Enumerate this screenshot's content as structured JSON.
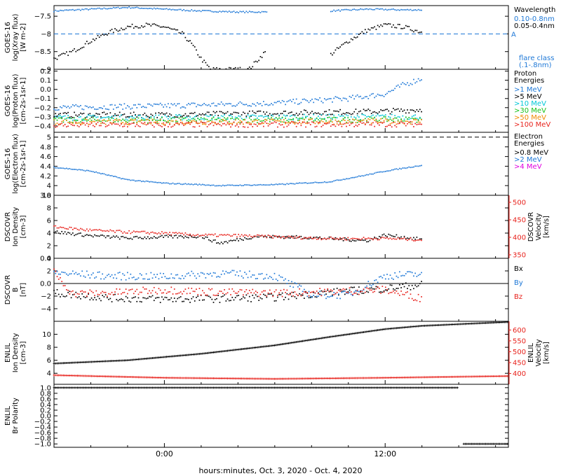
{
  "footer_label": "hours:minutes, Oct.  3, 2020 - Oct.  4, 2020",
  "x_axis": {
    "range_hours": [
      -6,
      18.7
    ],
    "data_end_hour": 14,
    "tick_labels": [
      {
        "hour": 0,
        "label": "0:00"
      },
      {
        "hour": 12,
        "label": "12:00"
      }
    ]
  },
  "colors": {
    "blue": "#1e78d7",
    "black": "#000000",
    "red": "#e8231d",
    "cyan": "#00c8d8",
    "green": "#18c21a",
    "yellow": "#d6c700",
    "orange": "#f08a00",
    "magenta": "#e000e0"
  },
  "chart_data": [
    {
      "type": "scatter",
      "ylabel_lines": [
        "GOES-16",
        "log(Xray flux)",
        "[W m-2]"
      ],
      "ylim": [
        -9.0,
        -7.2
      ],
      "yticks": [
        -7.5,
        -8.0,
        -8.5,
        -9.0
      ],
      "ref_lines": [
        {
          "y": -8.0,
          "style": "dashed",
          "color": "#1e78d7",
          "label": "A"
        }
      ],
      "legend_title": "Wavelength",
      "legend": [
        {
          "label": "0.10-0.8nm",
          "color": "#1e78d7"
        },
        {
          "label": "0.05-0.4nm",
          "color": "#000000"
        }
      ],
      "annotation": [
        "flare class",
        "(.1-.8nm)"
      ],
      "series": [
        {
          "name": "0.10-0.8nm",
          "color": "#1e78d7",
          "points": [
            [
              -6,
              -7.35
            ],
            [
              -4,
              -7.3
            ],
            [
              -2,
              -7.25
            ],
            [
              0,
              -7.3
            ],
            [
              2,
              -7.35
            ],
            [
              4,
              -7.38
            ],
            [
              5.6,
              -7.38
            ],
            [
              6.2,
              null
            ],
            [
              8.5,
              null
            ],
            [
              9,
              -7.35
            ],
            [
              11,
              -7.3
            ],
            [
              13,
              -7.32
            ],
            [
              14,
              -7.32
            ]
          ]
        },
        {
          "name": "0.05-0.4nm",
          "color": "#000000",
          "points": [
            [
              -6,
              -8.7
            ],
            [
              -5,
              -8.5
            ],
            [
              -4,
              -8.2
            ],
            [
              -3,
              -7.95
            ],
            [
              -2,
              -7.8
            ],
            [
              -1,
              -7.75
            ],
            [
              0,
              -7.8
            ],
            [
              1,
              -8.0
            ],
            [
              1.5,
              -8.3
            ],
            [
              2,
              -8.7
            ],
            [
              2.5,
              -9.0
            ],
            [
              4.6,
              -9.0
            ],
            [
              5.5,
              -8.5
            ],
            [
              6.2,
              null
            ],
            [
              8.5,
              null
            ],
            [
              9,
              -8.6
            ],
            [
              10,
              -8.2
            ],
            [
              11,
              -7.9
            ],
            [
              12,
              -7.75
            ],
            [
              13,
              -7.8
            ],
            [
              14,
              -7.95
            ]
          ]
        }
      ]
    },
    {
      "type": "scatter",
      "ylabel_lines": [
        "GOES-16",
        "log(Proton flux)",
        "[cm-2s-1sr-1]"
      ],
      "ylim": [
        -0.47,
        0.22
      ],
      "yticks": [
        0.2,
        0.1,
        0.0,
        -0.1,
        -0.2,
        -0.3,
        -0.4
      ],
      "legend_title": "Proton Energies",
      "legend": [
        {
          "label": ">1 MeV",
          "color": "#1e78d7"
        },
        {
          "label": ">5 MeV",
          "color": "#000000"
        },
        {
          "label": ">10 MeV",
          "color": "#00c8d8"
        },
        {
          "label": ">30 MeV",
          "color": "#18c21a"
        },
        {
          "label": ">50 MeV",
          "color": "#f08a00"
        },
        {
          "label": ">100 MeV",
          "color": "#e8231d"
        }
      ],
      "series": [
        {
          "name": ">1 MeV",
          "color": "#1e78d7",
          "points": [
            [
              -6,
              -0.2
            ],
            [
              0,
              -0.18
            ],
            [
              6,
              -0.15
            ],
            [
              10,
              -0.1
            ],
            [
              12,
              -0.05
            ],
            [
              13,
              0.05
            ],
            [
              14,
              0.12
            ]
          ]
        },
        {
          "name": ">5 MeV",
          "color": "#000000",
          "points": [
            [
              -6,
              -0.28
            ],
            [
              0,
              -0.28
            ],
            [
              6,
              -0.26
            ],
            [
              12,
              -0.24
            ],
            [
              14,
              -0.22
            ]
          ]
        },
        {
          "name": ">10 MeV",
          "color": "#00c8d8",
          "points": [
            [
              -6,
              -0.31
            ],
            [
              14,
              -0.3
            ]
          ]
        },
        {
          "name": ">30 MeV",
          "color": "#18c21a",
          "points": [
            [
              -6,
              -0.34
            ],
            [
              14,
              -0.33
            ]
          ]
        },
        {
          "name": ">50 MeV",
          "color": "#f08a00",
          "points": [
            [
              -6,
              -0.36
            ],
            [
              14,
              -0.35
            ]
          ]
        },
        {
          "name": ">100 MeV",
          "color": "#e8231d",
          "points": [
            [
              -6,
              -0.39
            ],
            [
              14,
              -0.38
            ]
          ]
        }
      ]
    },
    {
      "type": "scatter",
      "ylabel_lines": [
        "GOES-16",
        "log(Electron flux)",
        "[cm-2s-1sr-1]"
      ],
      "ylim": [
        3.8,
        5.1
      ],
      "yticks": [
        5.0,
        4.8,
        4.6,
        4.4,
        4.2,
        4.0,
        3.8
      ],
      "ref_lines": [
        {
          "y": 5.0,
          "style": "dashed",
          "color": "#000000"
        }
      ],
      "legend_title": "Electron Energies",
      "legend": [
        {
          "label": ">0.8 MeV",
          "color": "#000000"
        },
        {
          "label": ">2 MeV",
          "color": "#1e78d7"
        },
        {
          "label": ">4 MeV",
          "color": "#e000e0"
        }
      ],
      "series": [
        {
          "name": ">2 MeV",
          "color": "#1e78d7",
          "points": [
            [
              -6,
              4.38
            ],
            [
              -4,
              4.3
            ],
            [
              -2,
              4.12
            ],
            [
              0,
              4.05
            ],
            [
              2,
              4.02
            ],
            [
              3,
              4.0
            ],
            [
              6,
              4.02
            ],
            [
              9,
              4.08
            ],
            [
              11,
              4.22
            ],
            [
              12,
              4.3
            ],
            [
              14,
              4.42
            ]
          ]
        }
      ]
    },
    {
      "type": "scatter",
      "ylabel_lines": [
        "DSCOVR",
        "Ion Density",
        "[cm-3]"
      ],
      "ylim": [
        0,
        10
      ],
      "yticks": [
        10,
        8,
        6,
        4,
        2,
        0
      ],
      "right_axis": {
        "lines": [
          "DSCOVR",
          "Velocity",
          "[km/s]"
        ],
        "ticks": [
          500,
          450,
          400,
          350
        ],
        "color": "#e8231d",
        "range": [
          340,
          520
        ]
      },
      "series": [
        {
          "name": "Ion Density",
          "color": "#000000",
          "points": [
            [
              -6,
              4.2
            ],
            [
              -4,
              3.6
            ],
            [
              -2,
              3.2
            ],
            [
              0,
              3.4
            ],
            [
              2,
              3.5
            ],
            [
              3,
              2.4
            ],
            [
              5,
              3.5
            ],
            [
              8,
              3.3
            ],
            [
              11,
              2.8
            ],
            [
              12,
              3.7
            ],
            [
              14,
              3.0
            ]
          ]
        },
        {
          "name": "Velocity",
          "color": "#e8231d",
          "axis": "right",
          "points": [
            [
              -6,
              430
            ],
            [
              -4,
              420
            ],
            [
              -2,
              415
            ],
            [
              0,
              412
            ],
            [
              2,
              406
            ],
            [
              4,
              405
            ],
            [
              8,
              398
            ],
            [
              10,
              396
            ],
            [
              12,
              397
            ],
            [
              14,
              393
            ]
          ]
        }
      ]
    },
    {
      "type": "scatter",
      "ylabel_lines": [
        "DSCOVR",
        "B",
        "[nT]"
      ],
      "ylim": [
        -6,
        4
      ],
      "yticks": [
        4,
        2,
        0,
        -2,
        -4
      ],
      "ref_lines": [
        {
          "y": 0,
          "style": "solid",
          "color": "#000000"
        }
      ],
      "legend": [
        {
          "label": "Bx",
          "color": "#000000"
        },
        {
          "label": "By",
          "color": "#1e78d7"
        },
        {
          "label": "Bz",
          "color": "#e8231d"
        }
      ],
      "series": [
        {
          "name": "Bx",
          "color": "#000000",
          "points": [
            [
              -6,
              -1.5
            ],
            [
              -3,
              -2.3
            ],
            [
              0,
              -2.5
            ],
            [
              3,
              -2.4
            ],
            [
              6,
              -2.2
            ],
            [
              9,
              -1.4
            ],
            [
              12,
              -0.8
            ],
            [
              14,
              -0.2
            ]
          ]
        },
        {
          "name": "By",
          "color": "#1e78d7",
          "points": [
            [
              -6,
              1.7
            ],
            [
              -3,
              1.2
            ],
            [
              0,
              1.1
            ],
            [
              3,
              1.6
            ],
            [
              6,
              1.2
            ],
            [
              8,
              -1.8
            ],
            [
              10,
              -1.8
            ],
            [
              12,
              1.2
            ],
            [
              14,
              1.5
            ]
          ]
        },
        {
          "name": "Bz",
          "color": "#e8231d",
          "points": [
            [
              -6,
              1.8
            ],
            [
              -5,
              -1.6
            ],
            [
              -3,
              -1.5
            ],
            [
              0,
              -1.0
            ],
            [
              3,
              -1.4
            ],
            [
              6,
              -1.5
            ],
            [
              9,
              -1.3
            ],
            [
              12,
              -1.0
            ],
            [
              14,
              -2.4
            ]
          ]
        }
      ]
    },
    {
      "type": "scatter",
      "ylabel_lines": [
        "ENLIL",
        "Ion Density",
        "[cm-3]"
      ],
      "ylim": [
        2.3,
        12
      ],
      "yticks": [
        10,
        8,
        6,
        4
      ],
      "right_axis": {
        "lines": [
          "ENLIL",
          "Velocity",
          "[km/s]"
        ],
        "ticks": [
          600,
          550,
          500,
          450,
          400
        ],
        "color": "#e8231d",
        "range": [
          350,
          640
        ]
      },
      "series": [
        {
          "name": "Ion Density",
          "color": "#000000",
          "points": [
            [
              -6,
              5.5
            ],
            [
              -2,
              6.0
            ],
            [
              2,
              7.0
            ],
            [
              6,
              8.3
            ],
            [
              9,
              9.6
            ],
            [
              12,
              10.8
            ],
            [
              14,
              11.3
            ],
            [
              18.7,
              11.9
            ]
          ]
        },
        {
          "name": "Velocity",
          "color": "#e8231d",
          "axis": "right",
          "points": [
            [
              -6,
              392
            ],
            [
              0,
              380
            ],
            [
              6,
              375
            ],
            [
              12,
              380
            ],
            [
              18.7,
              388
            ]
          ]
        }
      ]
    },
    {
      "type": "scatter",
      "ylabel_lines": [
        "ENLIL",
        "Br Polarity"
      ],
      "ylim": [
        -1.12,
        1.12
      ],
      "yticks": [
        1.0,
        0.8,
        0.6,
        0.4,
        0.2,
        0.0,
        -0.2,
        -0.4,
        -0.6,
        -0.8,
        -1.0
      ],
      "series": [
        {
          "name": "Br Polarity",
          "color": "#000000",
          "points": [
            [
              -6,
              1.0
            ],
            [
              16,
              1.0
            ],
            [
              16,
              null
            ],
            [
              16.2,
              -1.0
            ],
            [
              18.7,
              -1.0
            ]
          ]
        }
      ]
    }
  ]
}
